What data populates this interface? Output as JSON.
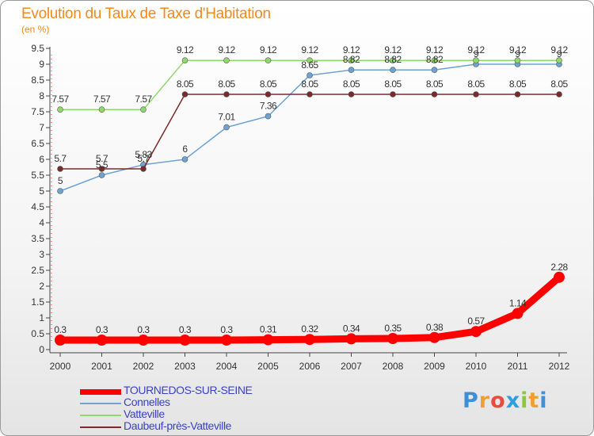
{
  "title": "Evolution du Taux de Taxe d'Habitation",
  "unit_label": "(en %)",
  "logo": {
    "text": "Proxiti",
    "letters": [
      "P",
      "r",
      "o",
      "x",
      "i",
      "t",
      "i"
    ]
  },
  "chart_data": {
    "type": "line",
    "title": "Evolution du Taux de Taxe d'Habitation",
    "ylabel": "(en %)",
    "xlabel": "",
    "ylim": [
      0,
      9.5
    ],
    "y_ticks": [
      0,
      0.5,
      1,
      1.5,
      2,
      2.5,
      3,
      3.5,
      4,
      4.5,
      5,
      5.5,
      6,
      6.5,
      7,
      7.5,
      8,
      8.5,
      9,
      9.5
    ],
    "y_tick_labels": [
      "0",
      "0.5",
      "1",
      "1.5",
      "2",
      "2.5",
      "3",
      "3.5",
      "4",
      "4.5",
      "5",
      "5.5",
      "6",
      "6.5",
      "7",
      "7.5",
      "8",
      "8.5",
      "9",
      "9.5"
    ],
    "categories": [
      "2000",
      "2001",
      "2002",
      "2003",
      "2004",
      "2005",
      "2006",
      "2007",
      "2008",
      "2009",
      "2010",
      "2011",
      "2012"
    ],
    "grid": false,
    "legend_position": "bottom-left",
    "series": [
      {
        "name": "TOURNEDOS-SUR-SEINE",
        "color": "#ff0000",
        "values": [
          0.3,
          0.3,
          0.3,
          0.3,
          0.3,
          0.31,
          0.32,
          0.34,
          0.35,
          0.38,
          0.57,
          1.14,
          2.28
        ],
        "labels": [
          "0.3",
          "0.3",
          "0.3",
          "0.3",
          "0.3",
          "0.31",
          "0.32",
          "0.34",
          "0.35",
          "0.38",
          "0.57",
          "1.14",
          "2.28"
        ]
      },
      {
        "name": "Connelles",
        "color": "#6ea2d3",
        "values": [
          5,
          5.5,
          5.83,
          6,
          7.01,
          7.36,
          8.65,
          8.82,
          8.82,
          8.82,
          9,
          9,
          9
        ],
        "labels": [
          "5",
          "5.5",
          "5.83",
          "6",
          "7.01",
          "7.36",
          "8.65",
          "8.82",
          "8.82",
          "8.82",
          "9",
          "9",
          "9"
        ]
      },
      {
        "name": "Vatteville",
        "color": "#90d86e",
        "values": [
          7.57,
          7.57,
          7.57,
          9.12,
          9.12,
          9.12,
          9.12,
          9.12,
          9.12,
          9.12,
          9.12,
          9.12,
          9.12
        ],
        "labels": [
          "7.57",
          "7.57",
          "7.57",
          "9.12",
          "9.12",
          "9.12",
          "9.12",
          "9.12",
          "9.12",
          "9.12",
          "9.12",
          "9.12",
          "9.12"
        ]
      },
      {
        "name": "Daubeuf-près-Vatteville",
        "color": "#7a2a2a",
        "values": [
          5.7,
          5.7,
          5.7,
          8.05,
          8.05,
          8.05,
          8.05,
          8.05,
          8.05,
          8.05,
          8.05,
          8.05,
          8.05
        ],
        "labels": [
          "5.7",
          "5.7",
          "5.7",
          "8.05",
          "8.05",
          "8.05",
          "8.05",
          "8.05",
          "8.05",
          "8.05",
          "8.05",
          "8.05",
          "8.05"
        ]
      }
    ]
  }
}
